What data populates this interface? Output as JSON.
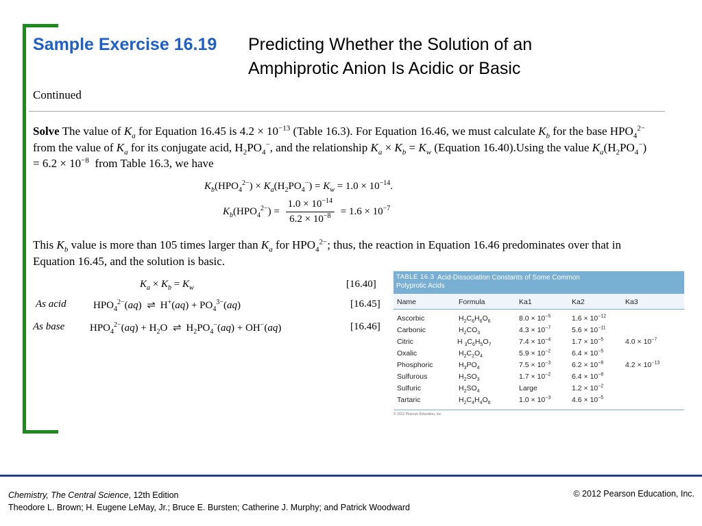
{
  "title": {
    "exercise": "Sample Exercise 16.19",
    "line1": "Predicting Whether the Solution of an",
    "line2": "Amphiprotic Anion Is Acidic or Basic"
  },
  "continued": "Continued",
  "solve": {
    "label": "Solve",
    "text": "The value of Ka for Equation 16.45 is 4.2 × 10−13 (Table 16.3). For Equation 16.46, we must calculate Kb for the base HPO42− from the value of Ka for its conjugate acid, H2PO4−, and the relationship Ka × Kb = Kw (Equation 16.40).Using the value Ka(H2PO4−) = 6.2 × 10−8  from Table 16.3, we have"
  },
  "conclusion": "This Kb value is more than 105 times larger than Ka for HPO42−; thus, the reaction in Equation 16.46 predominates over that in Equation 16.45, and the solution is basic.",
  "equations": {
    "eq1": "Kb(HPO42−) × Ka(H2PO4−) = Kw = 1.0 × 10−14.",
    "eq2": "Kb(HPO42−) = 1.0 × 10−14 / 6.2 × 10−8 = 1.6 × 10−7"
  },
  "reactions": {
    "relation": {
      "text": "Ka × Kb = Kw",
      "number": "[16.40]"
    },
    "acid": {
      "label": "As acid",
      "text": "HPO42−(aq) ⇌ H+(aq) + PO43−(aq)",
      "number": "[16.45]"
    },
    "base": {
      "label": "As base",
      "text": "HPO42−(aq) + H2O ⇌ H2PO4−(aq) + OH−(aq)",
      "number": "[16.46]"
    }
  },
  "table": {
    "number": "TABLE 16.3",
    "title_line1": "Acid-Dissociation Constants of Some Common",
    "title_line2": "Polyprotic Acids",
    "columns": [
      "Name",
      "Formula",
      "Ka1",
      "Ka2",
      "Ka3"
    ],
    "rows": [
      {
        "name": "Ascorbic",
        "formula": "H2C6H6O6",
        "ka1": "8.0 × 10−5",
        "ka2": "1.6 × 10−12",
        "ka3": ""
      },
      {
        "name": "Carbonic",
        "formula": "H2CO3",
        "ka1": "4.3 × 10−7",
        "ka2": "5.6 × 10−11",
        "ka3": ""
      },
      {
        "name": "Citric",
        "formula": "H3C6H5O7",
        "ka1": "7.4 × 10−4",
        "ka2": "1.7 × 10−5",
        "ka3": "4.0 × 10−7"
      },
      {
        "name": "Oxalic",
        "formula": "H2C2O4",
        "ka1": "5.9 × 10−2",
        "ka2": "6.4 × 10−5",
        "ka3": ""
      },
      {
        "name": "Phosphoric",
        "formula": "H3PO4",
        "ka1": "7.5 × 10−3",
        "ka2": "6.2 × 10−8",
        "ka3": "4.2 × 10−13"
      },
      {
        "name": "Sulfurous",
        "formula": "H2SO3",
        "ka1": "1.7 × 10−2",
        "ka2": "6.4 × 10−8",
        "ka3": ""
      },
      {
        "name": "Sulfuric",
        "formula": "H2SO4",
        "ka1": "Large",
        "ka2": "1.2 × 10−2",
        "ka3": ""
      },
      {
        "name": "Tartaric",
        "formula": "H2C4H4O6",
        "ka1": "1.0 × 10−3",
        "ka2": "4.6 × 10−5",
        "ka3": ""
      }
    ],
    "footnote": "© 2012 Pearson Education, Inc."
  },
  "footer": {
    "book": "Chemistry, The Central Science",
    "edition": ", 12th Edition",
    "authors": "Theodore L. Brown; H. Eugene LeMay, Jr.; Bruce E. Bursten; Catherine J. Murphy; and Patrick Woodward",
    "copyright": "© 2012 Pearson Education, Inc."
  },
  "colors": {
    "accent_green": "#1e8a1e",
    "title_blue": "#1f5fc8",
    "table_header": "#7aafd4",
    "footer_rule": "#1f3f8c"
  }
}
